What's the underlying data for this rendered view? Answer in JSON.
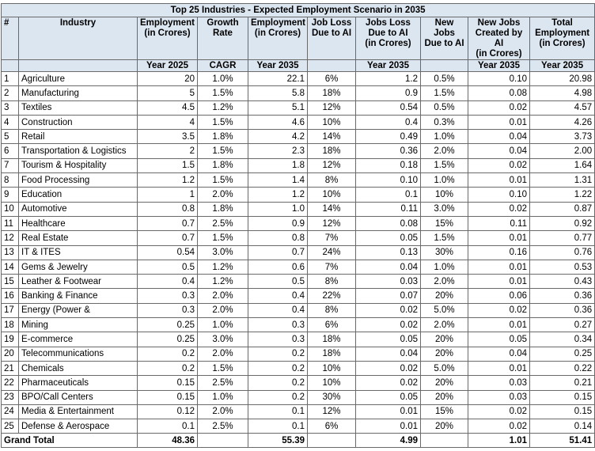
{
  "title": "Top 25 Industries - Expected Employment Scenario in 2035",
  "header": {
    "columns": [
      "#",
      "Industry",
      "Employment\n(in Crores)",
      "Growth\nRate",
      "Employment\n(in Crores)",
      "Job Loss\nDue to AI",
      "Jobs Loss\nDue to AI\n(in Crores)",
      "New Jobs\nDue to AI",
      "New Jobs\nCreated by AI\n(in Crores)",
      "Total\nEmployment\n(in Crores)"
    ],
    "subheader": {
      "2": "Year 2025",
      "3": "CAGR",
      "4": "Year 2035",
      "6": "Year 2035",
      "8": "Year 2035",
      "9": "Year 2035"
    }
  },
  "rows": [
    [
      "1",
      "Agriculture",
      "20",
      "1.0%",
      "22.1",
      "6%",
      "1.2",
      "0.5%",
      "0.10",
      "20.98"
    ],
    [
      "2",
      "Manufacturing",
      "5",
      "1.5%",
      "5.8",
      "18%",
      "0.9",
      "1.5%",
      "0.08",
      "4.98"
    ],
    [
      "3",
      "Textiles",
      "4.5",
      "1.2%",
      "5.1",
      "12%",
      "0.54",
      "0.5%",
      "0.02",
      "4.57"
    ],
    [
      "4",
      "Construction",
      "4",
      "1.5%",
      "4.6",
      "10%",
      "0.4",
      "0.3%",
      "0.01",
      "4.26"
    ],
    [
      "5",
      "Retail",
      "3.5",
      "1.8%",
      "4.2",
      "14%",
      "0.49",
      "1.0%",
      "0.04",
      "3.73"
    ],
    [
      "6",
      "Transportation & Logistics",
      "2",
      "1.5%",
      "2.3",
      "18%",
      "0.36",
      "2.0%",
      "0.04",
      "2.00"
    ],
    [
      "7",
      "Tourism & Hospitality",
      "1.5",
      "1.8%",
      "1.8",
      "12%",
      "0.18",
      "1.5%",
      "0.02",
      "1.64"
    ],
    [
      "8",
      "Food Processing",
      "1.2",
      "1.5%",
      "1.4",
      "8%",
      "0.10",
      "1.0%",
      "0.01",
      "1.31"
    ],
    [
      "9",
      "Education",
      "1",
      "2.0%",
      "1.2",
      "10%",
      "0.1",
      "10%",
      "0.10",
      "1.22"
    ],
    [
      "10",
      "Automotive",
      "0.8",
      "1.8%",
      "1.0",
      "14%",
      "0.11",
      "3.0%",
      "0.02",
      "0.87"
    ],
    [
      "11",
      "Healthcare",
      "0.7",
      "2.5%",
      "0.9",
      "12%",
      "0.08",
      "15%",
      "0.11",
      "0.92"
    ],
    [
      "12",
      "Real Estate",
      "0.7",
      "1.5%",
      "0.8",
      "7%",
      "0.05",
      "1.5%",
      "0.01",
      "0.77"
    ],
    [
      "13",
      "IT & ITES",
      "0.54",
      "3.0%",
      "0.7",
      "24%",
      "0.13",
      "30%",
      "0.16",
      "0.76"
    ],
    [
      "14",
      "Gems & Jewelry",
      "0.5",
      "1.2%",
      "0.6",
      "7%",
      "0.04",
      "1.0%",
      "0.01",
      "0.53"
    ],
    [
      "15",
      "Leather & Footwear",
      "0.4",
      "1.2%",
      "0.5",
      "8%",
      "0.03",
      "2.0%",
      "0.01",
      "0.43"
    ],
    [
      "16",
      "Banking & Finance",
      "0.3",
      "2.0%",
      "0.4",
      "22%",
      "0.07",
      "20%",
      "0.06",
      "0.36"
    ],
    [
      "17",
      "Energy (Power &",
      "0.3",
      "2.0%",
      "0.4",
      "8%",
      "0.02",
      "5.0%",
      "0.02",
      "0.36"
    ],
    [
      "18",
      "Mining",
      "0.25",
      "1.0%",
      "0.3",
      "6%",
      "0.02",
      "2.0%",
      "0.01",
      "0.27"
    ],
    [
      "19",
      "E-commerce",
      "0.25",
      "3.0%",
      "0.3",
      "18%",
      "0.05",
      "20%",
      "0.05",
      "0.34"
    ],
    [
      "20",
      "Telecommunications",
      "0.2",
      "2.0%",
      "0.2",
      "18%",
      "0.04",
      "20%",
      "0.04",
      "0.25"
    ],
    [
      "21",
      "Chemicals",
      "0.2",
      "1.5%",
      "0.2",
      "10%",
      "0.02",
      "5.0%",
      "0.01",
      "0.22"
    ],
    [
      "22",
      "Pharmaceuticals",
      "0.15",
      "2.5%",
      "0.2",
      "10%",
      "0.02",
      "20%",
      "0.03",
      "0.21"
    ],
    [
      "23",
      "BPO/Call Centers",
      "0.15",
      "1.0%",
      "0.2",
      "30%",
      "0.05",
      "20%",
      "0.03",
      "0.15"
    ],
    [
      "24",
      "Media & Entertainment",
      "0.12",
      "2.0%",
      "0.1",
      "12%",
      "0.01",
      "15%",
      "0.02",
      "0.15"
    ],
    [
      "25",
      "Defense & Aerospace",
      "0.1",
      "2.5%",
      "0.1",
      "6%",
      "0.01",
      "20%",
      "0.02",
      "0.14"
    ]
  ],
  "total": {
    "label": "Grand Total",
    "values": {
      "2": "48.36",
      "4": "55.39",
      "6": "4.99",
      "8": "1.01",
      "9": "51.41"
    }
  }
}
